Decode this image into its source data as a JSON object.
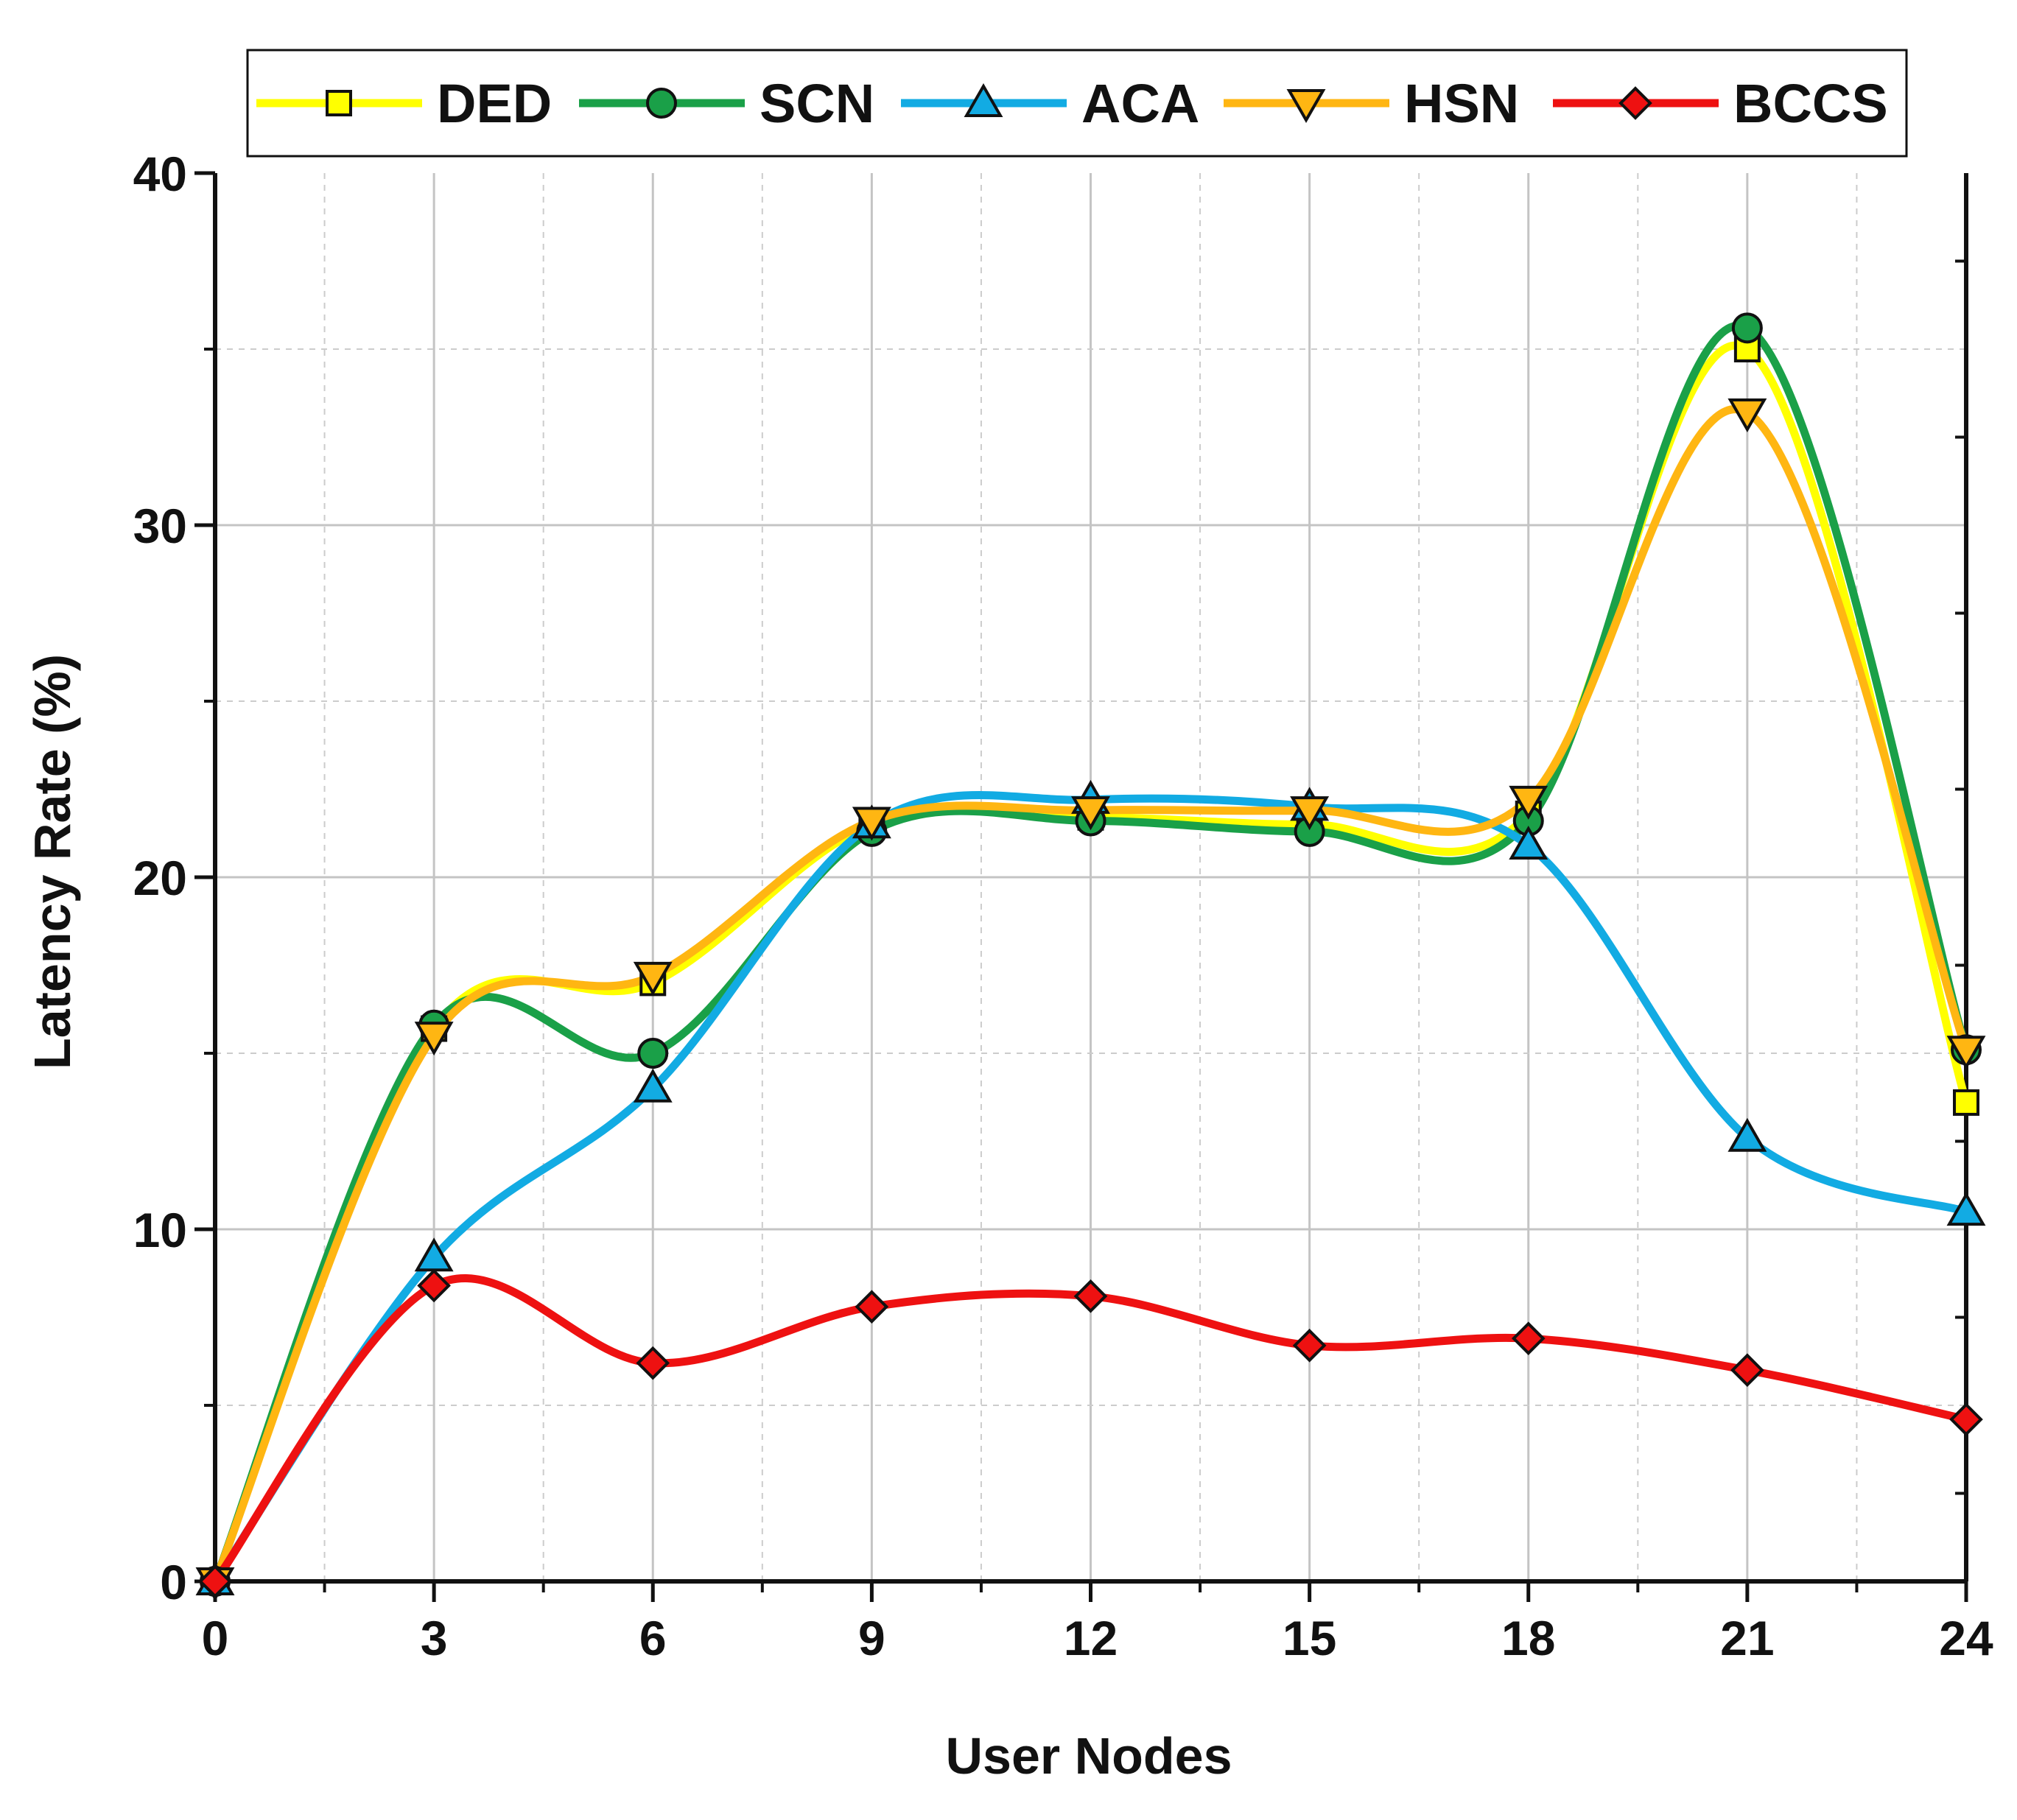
{
  "chart_data": {
    "type": "line",
    "title": "",
    "xlabel": "User Nodes",
    "ylabel": "Latency Rate (%)",
    "x": [
      0,
      3,
      6,
      9,
      12,
      15,
      18,
      21,
      24
    ],
    "xlim": [
      0,
      24
    ],
    "ylim": [
      0,
      40
    ],
    "xticks": [
      "0",
      "3",
      "6",
      "9",
      "12",
      "15",
      "18",
      "21",
      "24"
    ],
    "yticks": [
      "0",
      "10",
      "20",
      "30",
      "40"
    ],
    "grid": true,
    "legend_position": "top",
    "series": [
      {
        "name": "DED",
        "color": "#FFFF00",
        "marker": "square",
        "values": [
          0,
          15.7,
          17.0,
          21.5,
          21.7,
          21.5,
          21.8,
          35.0,
          13.6
        ]
      },
      {
        "name": "SCN",
        "color": "#1AA048",
        "marker": "circle",
        "values": [
          0,
          15.8,
          15.0,
          21.3,
          21.6,
          21.3,
          21.6,
          35.6,
          15.1
        ]
      },
      {
        "name": "ACA",
        "color": "#12ABE3",
        "marker": "triangle-up",
        "values": [
          0,
          9.2,
          14.0,
          21.5,
          22.2,
          22.0,
          20.9,
          12.6,
          10.5
        ]
      },
      {
        "name": "HSN",
        "color": "#FFB612",
        "marker": "triangle-down",
        "values": [
          0,
          15.5,
          17.2,
          21.6,
          21.9,
          21.9,
          22.2,
          33.2,
          15.1
        ]
      },
      {
        "name": "BCCS",
        "color": "#EE1111",
        "marker": "diamond",
        "values": [
          0,
          8.4,
          6.2,
          7.8,
          8.1,
          6.7,
          6.9,
          6.0,
          4.6
        ]
      }
    ]
  }
}
